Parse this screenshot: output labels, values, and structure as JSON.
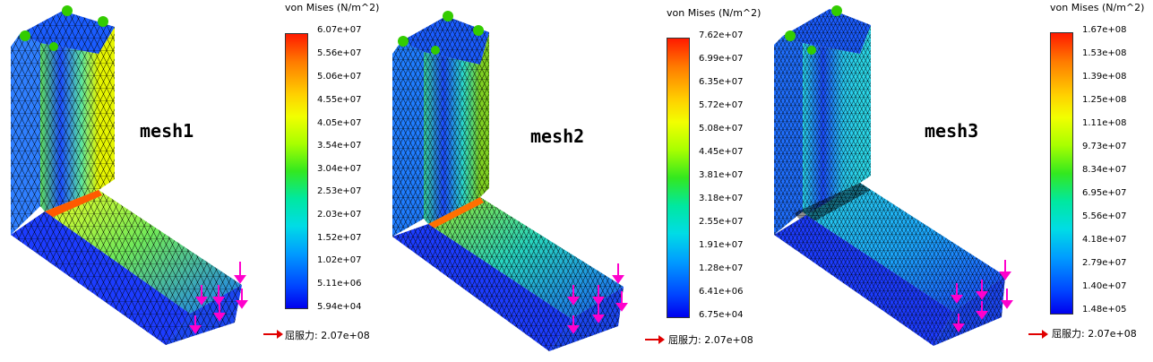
{
  "panels": [
    {
      "label": "mesh1",
      "legend_title": "von Mises (N/m^2)",
      "ticks": [
        "6.07e+07",
        "5.56e+07",
        "5.06e+07",
        "4.55e+07",
        "4.05e+07",
        "3.54e+07",
        "3.04e+07",
        "2.53e+07",
        "2.03e+07",
        "1.52e+07",
        "1.02e+07",
        "5.11e+06",
        "5.94e+04"
      ],
      "yield_label": "屈服力:",
      "yield_value": "2.07e+08"
    },
    {
      "label": "mesh2",
      "legend_title": "von Mises (N/m^2)",
      "ticks": [
        "7.62e+07",
        "6.99e+07",
        "6.35e+07",
        "5.72e+07",
        "5.08e+07",
        "4.45e+07",
        "3.81e+07",
        "3.18e+07",
        "2.55e+07",
        "1.91e+07",
        "1.28e+07",
        "6.41e+06",
        "6.75e+04"
      ],
      "yield_label": "屈服力:",
      "yield_value": "2.07e+08"
    },
    {
      "label": "mesh3",
      "legend_title": "von Mises (N/m^2)",
      "ticks": [
        "1.67e+08",
        "1.53e+08",
        "1.39e+08",
        "1.25e+08",
        "1.11e+08",
        "9.73e+07",
        "8.34e+07",
        "6.95e+07",
        "5.56e+07",
        "4.18e+07",
        "2.79e+07",
        "1.40e+07",
        "1.48e+05"
      ],
      "yield_label": "屈服力:",
      "yield_value": "2.07e+08"
    }
  ],
  "colors": {
    "mesh1_face_upper": "#d8f000",
    "mesh2_face_upper": "#7ed021",
    "mesh3_face_upper": "#2ad6e8",
    "fixture_marker": "#33cc00",
    "load_arrow": "#ff00cc",
    "yield_arrow": "#e00000"
  }
}
